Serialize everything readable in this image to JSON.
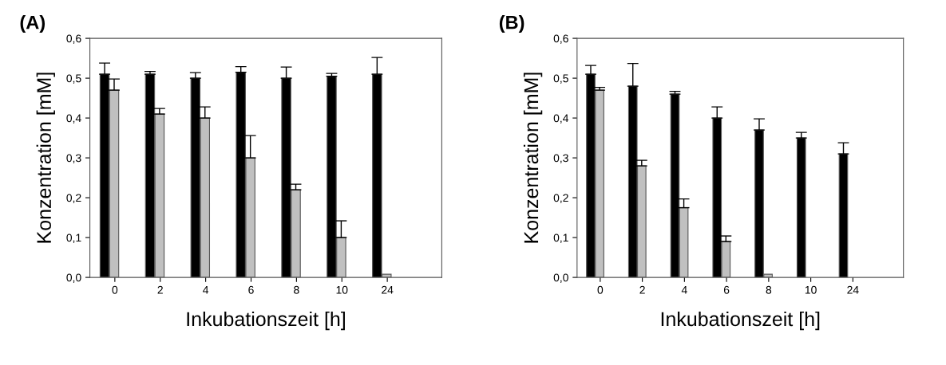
{
  "chart_data": [
    {
      "type": "bar",
      "title": "(A)",
      "xlabel": "Inkubationszeit [h]",
      "ylabel": "Konzentration [mM]",
      "categories": [
        "0",
        "2",
        "4",
        "6",
        "8",
        "10",
        "24"
      ],
      "series": [
        {
          "color": "#000000",
          "values": [
            0.51,
            0.51,
            0.5,
            0.515,
            0.5,
            0.505,
            0.51
          ],
          "errors": [
            [
              0.51,
              0.538
            ],
            [
              0.51,
              0.517
            ],
            [
              0.5,
              0.514
            ],
            [
              0.515,
              0.529
            ],
            [
              0.5,
              0.528
            ],
            [
              0.505,
              0.512
            ],
            [
              0.51,
              0.552
            ]
          ]
        },
        {
          "color": "#c0c0c0",
          "values": [
            0.47,
            0.41,
            0.4,
            0.3,
            0.22,
            0.1,
            0.008
          ],
          "errors": [
            [
              0.47,
              0.498
            ],
            [
              0.41,
              0.424
            ],
            [
              0.4,
              0.428
            ],
            [
              0.3,
              0.356
            ],
            [
              0.22,
              0.234
            ],
            [
              0.1,
              0.142
            ],
            null
          ]
        }
      ],
      "ylim": [
        0,
        0.6
      ],
      "yticks": [
        {
          "value": 0,
          "label": "0,0"
        },
        {
          "value": 0.1,
          "label": "0,1"
        },
        {
          "value": 0.2,
          "label": "0,2"
        },
        {
          "value": 0.3,
          "label": "0,3"
        },
        {
          "value": 0.4,
          "label": "0,4"
        },
        {
          "value": 0.5,
          "label": "0,5"
        },
        {
          "value": 0.6,
          "label": "0,6"
        }
      ],
      "grid": false,
      "legend": false
    },
    {
      "type": "bar",
      "title": "(B)",
      "xlabel": "Inkubationszeit [h]",
      "ylabel": "Konzentration [mM]",
      "categories": [
        "0",
        "2",
        "4",
        "6",
        "8",
        "10",
        "24"
      ],
      "series": [
        {
          "color": "#000000",
          "values": [
            0.51,
            0.48,
            0.46,
            0.4,
            0.37,
            0.35,
            0.31
          ],
          "errors": [
            [
              0.51,
              0.532
            ],
            [
              0.48,
              0.537
            ],
            [
              0.46,
              0.467
            ],
            [
              0.4,
              0.428
            ],
            [
              0.37,
              0.398
            ],
            [
              0.35,
              0.364
            ],
            [
              0.31,
              0.338
            ]
          ]
        },
        {
          "color": "#c0c0c0",
          "values": [
            0.47,
            0.28,
            0.175,
            0.09,
            0.008,
            null,
            null
          ],
          "errors": [
            [
              0.47,
              0.477
            ],
            [
              0.28,
              0.294
            ],
            [
              0.175,
              0.197
            ],
            [
              0.09,
              0.104
            ],
            null,
            null,
            null
          ]
        }
      ],
      "ylim": [
        0,
        0.6
      ],
      "yticks": [
        {
          "value": 0,
          "label": "0,0"
        },
        {
          "value": 0.1,
          "label": "0,1"
        },
        {
          "value": 0.2,
          "label": "0,2"
        },
        {
          "value": 0.3,
          "label": "0,3"
        },
        {
          "value": 0.4,
          "label": "0,4"
        },
        {
          "value": 0.5,
          "label": "0,5"
        },
        {
          "value": 0.6,
          "label": "0,6"
        }
      ],
      "grid": false,
      "legend": false
    }
  ]
}
